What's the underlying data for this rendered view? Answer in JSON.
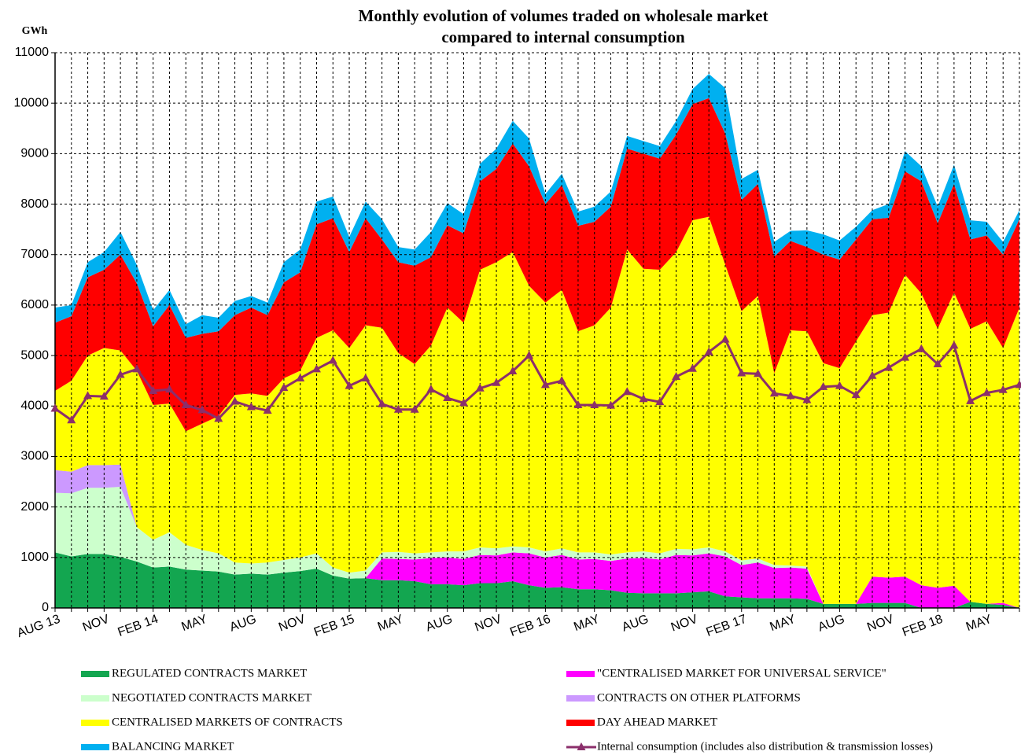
{
  "chart_data": {
    "type": "area",
    "title": "Monthly evolution of volumes traded on wholesale market",
    "subtitle": "compared to internal consumption",
    "y_label": "GWh",
    "categories": [
      "AUG 13",
      null,
      null,
      "NOV",
      null,
      null,
      "FEB 14",
      null,
      null,
      "MAY",
      null,
      null,
      "AUG",
      null,
      null,
      "NOV",
      null,
      null,
      "FEB 15",
      null,
      null,
      "MAY",
      null,
      null,
      "AUG",
      null,
      null,
      "NOV",
      null,
      null,
      "FEB 16",
      null,
      null,
      "MAY",
      null,
      null,
      "AUG",
      null,
      null,
      "NOV",
      null,
      null,
      "FEB 17",
      null,
      null,
      "MAY",
      null,
      null,
      "AUG",
      null,
      null,
      "NOV",
      null,
      null,
      "FEB 18",
      null,
      null,
      "MAY",
      null,
      null
    ],
    "ylim": [
      0,
      11000
    ],
    "yticks": [
      0,
      1000,
      2000,
      3000,
      4000,
      5000,
      6000,
      7000,
      8000,
      9000,
      10000,
      11000
    ],
    "grid": true,
    "stacked": true,
    "series": [
      {
        "name": "REGULATED CONTRACTS MARKET",
        "color": "#13a650",
        "values": [
          1100,
          1020,
          1070,
          1070,
          1010,
          920,
          800,
          820,
          760,
          740,
          720,
          660,
          680,
          660,
          700,
          730,
          780,
          640,
          580,
          590,
          550,
          550,
          530,
          470,
          470,
          450,
          490,
          490,
          530,
          450,
          400,
          410,
          370,
          370,
          350,
          300,
          290,
          290,
          290,
          310,
          330,
          230,
          210,
          190,
          190,
          190,
          180,
          80,
          80,
          80,
          100,
          100,
          100,
          0,
          0,
          0,
          120,
          80,
          60,
          0
        ]
      },
      {
        "name": "\"CENTRALISED MARKET FOR UNIVERSAL SERVICE\"",
        "color": "#ff00ff",
        "values": [
          0,
          0,
          0,
          0,
          0,
          0,
          0,
          0,
          0,
          0,
          0,
          0,
          0,
          0,
          0,
          0,
          0,
          0,
          0,
          0,
          430,
          420,
          430,
          520,
          530,
          520,
          560,
          550,
          570,
          630,
          600,
          640,
          590,
          600,
          580,
          680,
          700,
          670,
          760,
          730,
          750,
          790,
          640,
          710,
          600,
          610,
          600,
          0,
          0,
          0,
          520,
          500,
          520,
          450,
          400,
          440,
          0,
          0,
          40,
          0
        ]
      },
      {
        "name": "NEGOTIATED CONTRACTS MARKET",
        "color": "#ccffcc",
        "values": [
          1180,
          1250,
          1310,
          1310,
          1390,
          680,
          550,
          680,
          490,
          410,
          360,
          240,
          200,
          240,
          250,
          270,
          300,
          160,
          120,
          150,
          120,
          140,
          120,
          110,
          120,
          150,
          150,
          140,
          120,
          120,
          120,
          130,
          140,
          130,
          130,
          120,
          130,
          120,
          120,
          120,
          120,
          100,
          90,
          80,
          60,
          40,
          40,
          0,
          0,
          0,
          0,
          0,
          0,
          0,
          0,
          0,
          0,
          0,
          0,
          0
        ]
      },
      {
        "name": "CONTRACTS ON OTHER PLATFORMS",
        "color": "#cc99ff",
        "values": [
          450,
          430,
          450,
          450,
          440,
          0,
          0,
          0,
          0,
          0,
          0,
          0,
          0,
          0,
          0,
          0,
          0,
          0,
          0,
          0,
          0,
          0,
          0,
          0,
          0,
          0,
          0,
          0,
          0,
          0,
          0,
          0,
          0,
          0,
          0,
          0,
          0,
          0,
          0,
          0,
          0,
          0,
          0,
          0,
          0,
          0,
          0,
          0,
          0,
          0,
          0,
          0,
          0,
          0,
          0,
          0,
          0,
          0,
          0,
          0
        ]
      },
      {
        "name": "CENTRALISED MARKETS OF CONTRACTS",
        "color": "#ffff00",
        "values": [
          1570,
          1800,
          2170,
          2320,
          2260,
          3100,
          2670,
          2550,
          2250,
          2500,
          2720,
          3320,
          3370,
          3300,
          3600,
          3700,
          4270,
          4700,
          4450,
          4860,
          4450,
          3940,
          3750,
          4100,
          4830,
          4530,
          5500,
          5670,
          5830,
          5180,
          4930,
          5120,
          4380,
          4500,
          4890,
          6000,
          5600,
          5620,
          5880,
          6520,
          6550,
          5680,
          4940,
          5200,
          3800,
          4660,
          4660,
          4770,
          4670,
          5200,
          5180,
          5250,
          5980,
          5780,
          5130,
          5810,
          5410,
          5600,
          5050,
          5950
        ]
      },
      {
        "name": "DAY AHEAD MARKET",
        "color": "#ff0000",
        "values": [
          1350,
          1280,
          1550,
          1550,
          1900,
          1730,
          1560,
          1950,
          1850,
          1780,
          1680,
          1580,
          1700,
          1600,
          1900,
          1950,
          2250,
          2220,
          1900,
          2120,
          1750,
          1800,
          1950,
          1750,
          1630,
          1770,
          1750,
          1850,
          2150,
          2370,
          1950,
          2080,
          2090,
          2050,
          2000,
          2000,
          2280,
          2200,
          2330,
          2300,
          2350,
          2600,
          2200,
          2220,
          2310,
          1770,
          1670,
          2150,
          2150,
          2020,
          1900,
          1880,
          2050,
          2220,
          2090,
          2150,
          1770,
          1700,
          1850,
          1750
        ]
      },
      {
        "name": "BALANCING MARKET",
        "color": "#00b0f0",
        "values": [
          300,
          220,
          300,
          350,
          450,
          370,
          320,
          300,
          270,
          370,
          270,
          280,
          230,
          250,
          400,
          450,
          450,
          430,
          300,
          330,
          400,
          300,
          320,
          500,
          440,
          380,
          350,
          400,
          450,
          550,
          200,
          220,
          280,
          300,
          300,
          250,
          250,
          250,
          270,
          300,
          480,
          900,
          420,
          280,
          290,
          200,
          330,
          400,
          380,
          250,
          180,
          270,
          400,
          300,
          330,
          380,
          380,
          270,
          250,
          180
        ]
      },
      {
        "name": "Internal consumption (includes also distribution & transmission losses)",
        "type": "line",
        "color": "#8b2f6b",
        "values": [
          3950,
          3720,
          4200,
          4190,
          4620,
          4730,
          4300,
          4330,
          4020,
          3920,
          3750,
          4090,
          3980,
          3910,
          4360,
          4550,
          4730,
          4900,
          4400,
          4550,
          4040,
          3930,
          3930,
          4330,
          4160,
          4060,
          4350,
          4460,
          4690,
          5000,
          4420,
          4500,
          4020,
          4020,
          4010,
          4280,
          4140,
          4080,
          4580,
          4740,
          5070,
          5320,
          4650,
          4640,
          4250,
          4200,
          4120,
          4380,
          4400,
          4220,
          4600,
          4760,
          4960,
          5130,
          4830,
          5200,
          4100,
          4260,
          4320,
          4420
        ]
      }
    ]
  }
}
